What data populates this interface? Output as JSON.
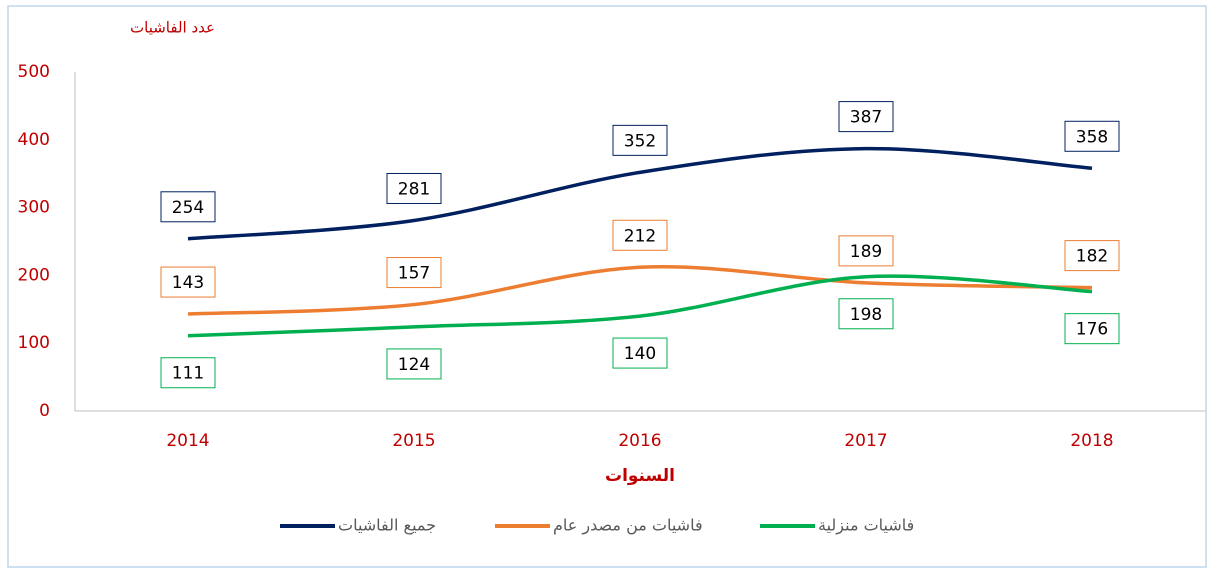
{
  "chart_data": {
    "type": "line",
    "y_axis_label": "عدد الفاشيات",
    "x_axis_label": "السنوات",
    "categories": [
      "2014",
      "2015",
      "2016",
      "2017",
      "2018"
    ],
    "series": [
      {
        "name": "جميع الفاشيات",
        "color": "#002060",
        "values": [
          254,
          281,
          352,
          387,
          358
        ],
        "label_side": "above"
      },
      {
        "name": "فاشيات من مصدر عام",
        "color": "#ed7d31",
        "values": [
          143,
          157,
          212,
          189,
          182
        ],
        "label_side": "above"
      },
      {
        "name": "فاشيات منزلية",
        "color": "#00b050",
        "values": [
          111,
          124,
          140,
          198,
          176
        ],
        "label_side": "below"
      }
    ],
    "ylim": [
      0,
      500
    ],
    "yticks": [
      0,
      100,
      200,
      300,
      400,
      500
    ],
    "axis_color": "#c00000",
    "smooth": true
  }
}
